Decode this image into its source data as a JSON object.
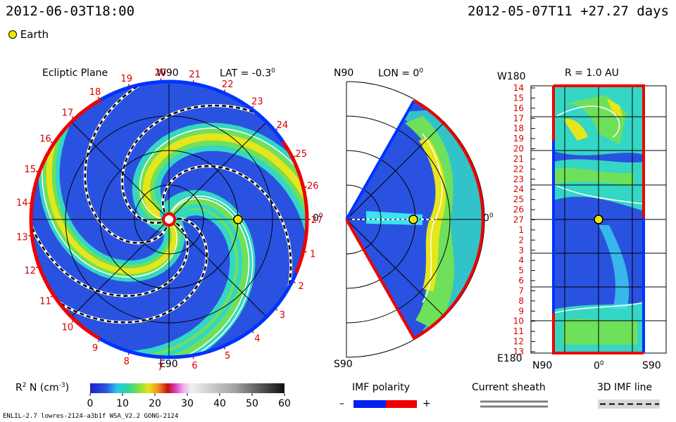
{
  "header": {
    "datetime_left": "2012-06-03T18:00",
    "datetime_right": "2012-05-07T11 +27.27 days",
    "earth_label": "Earth"
  },
  "panels": {
    "ecliptic": {
      "title": "Ecliptic Plane",
      "top_label": "W90",
      "bottom_label": "E90",
      "right_label": "0",
      "lat_label": "LAT = -0.3",
      "degree_mark": "0",
      "carrington_rotations": [
        "27",
        "1",
        "2",
        "3",
        "4",
        "5",
        "6",
        "7",
        "8",
        "9",
        "10",
        "11",
        "12",
        "13",
        "14",
        "15",
        "16",
        "17",
        "18",
        "19",
        "20",
        "21",
        "22",
        "23",
        "24",
        "25",
        "26"
      ]
    },
    "meridional": {
      "top_label": "N90",
      "bottom_label": "S90",
      "right_label": "0",
      "lon_label": "LON = 0",
      "degree_mark": "0"
    },
    "radial": {
      "top_label": "W180",
      "bottom_label": "E180",
      "title": "R = 1.0 AU",
      "x_labels": [
        "N90",
        "0",
        "S90"
      ],
      "degree_mark": "0",
      "y_ticks": [
        "14",
        "15",
        "16",
        "17",
        "18",
        "19",
        "20",
        "21",
        "22",
        "23",
        "24",
        "25",
        "26",
        "27",
        "1",
        "2",
        "3",
        "4",
        "5",
        "6",
        "7",
        "8",
        "9",
        "10",
        "11",
        "12",
        "13"
      ]
    }
  },
  "legend": {
    "colorbar_title": "R",
    "colorbar_sup": "2",
    "colorbar_title_rest": " N (cm",
    "colorbar_sup2": "-3",
    "colorbar_close": ")",
    "colorbar_ticks": [
      "0",
      "10",
      "20",
      "30",
      "40",
      "50",
      "60"
    ],
    "imf_polarity_title": "IMF polarity",
    "imf_minus": "–",
    "imf_plus": "+",
    "current_sheath_title": "Current sheath",
    "imf_line_title": "3D IMF line"
  },
  "footer": {
    "credit": "ENLIL-2.7 lowres-2124-a3b1f WSA_V2.2 GONG-2124"
  },
  "colors": {
    "polarity_negative": "#0022ee",
    "polarity_positive": "#ee0000",
    "earth": "#f2e600"
  },
  "chart_data": {
    "type": "heatmap",
    "colorbar": {
      "label": "R^2 N (cm^-3)",
      "range": [
        0,
        60
      ],
      "ticks": [
        0,
        10,
        20,
        30,
        40,
        50,
        60
      ]
    },
    "ecliptic_plane": {
      "latitude_deg": -0.3,
      "carrington_ticks": [
        27,
        1,
        2,
        3,
        4,
        5,
        6,
        7,
        8,
        9,
        10,
        11,
        12,
        13,
        14,
        15,
        16,
        17,
        18,
        19,
        20,
        21,
        22,
        23,
        24,
        25,
        26
      ]
    },
    "meridional_plane": {
      "longitude_deg": 0
    },
    "radial_map": {
      "radius_au": 1.0,
      "latitude_labels": [
        "N90",
        "0",
        "S90"
      ],
      "rotation_ticks": [
        14,
        15,
        16,
        17,
        18,
        19,
        20,
        21,
        22,
        23,
        24,
        25,
        26,
        27,
        1,
        2,
        3,
        4,
        5,
        6,
        7,
        8,
        9,
        10,
        11,
        12,
        13
      ]
    }
  }
}
